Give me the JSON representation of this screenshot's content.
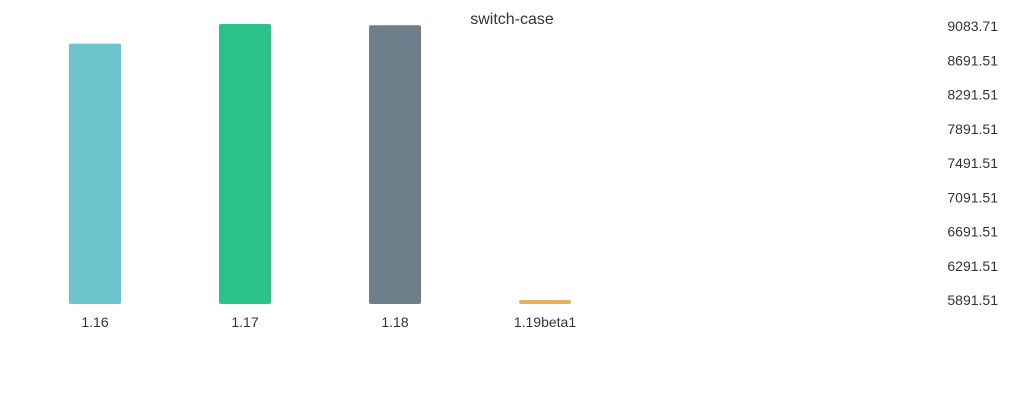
{
  "chart_data": {
    "type": "bar",
    "title": "switch-case",
    "xlabel": "",
    "ylabel": "",
    "categories": [
      "1.16",
      "1.17",
      "1.18",
      "1.19beta1"
    ],
    "values": [
      8860,
      9083.71,
      9070,
      5891.51
    ],
    "colors": [
      "#6cc5cc",
      "#2bc28a",
      "#6c7f8a",
      "#e8b05c"
    ],
    "ylim": [
      5891.51,
      9083.71
    ],
    "y_ticks": [
      "9083.71",
      "8691.51",
      "8291.51",
      "7891.51",
      "7491.51",
      "7091.51",
      "6691.51",
      "6291.51",
      "5891.51"
    ],
    "y_axis_position": "right",
    "grid": false,
    "legend": "none"
  }
}
